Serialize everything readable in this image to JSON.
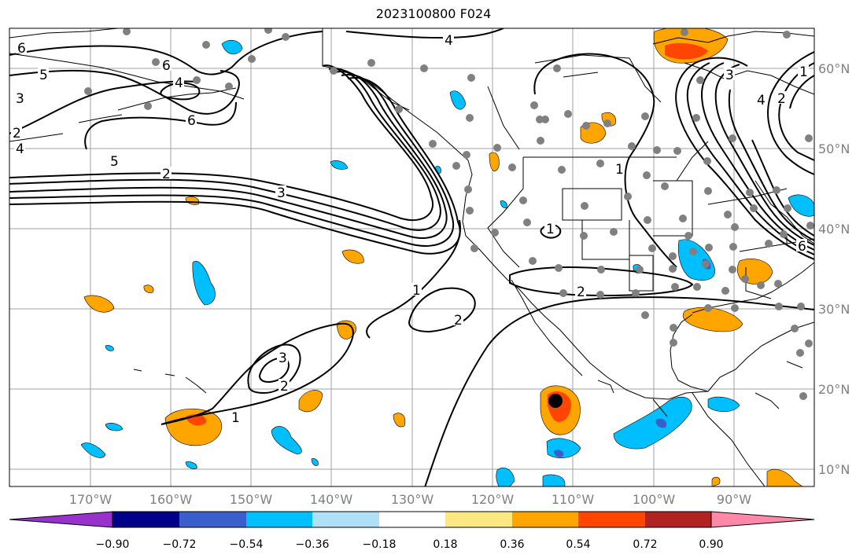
{
  "title": "2023100800 F024",
  "lon_labels": [
    "170°W",
    "160°W",
    "150°W",
    "140°W",
    "130°W",
    "120°W",
    "110°W",
    "100°W",
    "90°W"
  ],
  "lat_labels": [
    "60°N",
    "50°N",
    "40°N",
    "30°N",
    "20°N",
    "10°N"
  ],
  "colorbar": {
    "ticks": [
      "−0.90",
      "−0.72",
      "−0.54",
      "−0.36",
      "−0.18",
      "0.18",
      "0.36",
      "0.54",
      "0.72",
      "0.90"
    ],
    "colors": [
      "#9932cc",
      "#00008b",
      "#3a5fcd",
      "#00bfff",
      "#b0e0f8",
      "#ffffff",
      "#fce883",
      "#ffa500",
      "#ff4500",
      "#b22222",
      "#ff88aa"
    ]
  },
  "contour_labels": [
    "6",
    "5",
    "3",
    "2",
    "4",
    "6",
    "4",
    "6",
    "5",
    "2",
    "3",
    "4",
    "1",
    "1",
    "1",
    "2",
    "2",
    "3",
    "2",
    "1",
    "3",
    "2",
    "1",
    "6",
    "4"
  ],
  "colors": {
    "grid": "#a0a0a0",
    "contour": "#000000",
    "coast": "#000000",
    "station": "#808080"
  }
}
